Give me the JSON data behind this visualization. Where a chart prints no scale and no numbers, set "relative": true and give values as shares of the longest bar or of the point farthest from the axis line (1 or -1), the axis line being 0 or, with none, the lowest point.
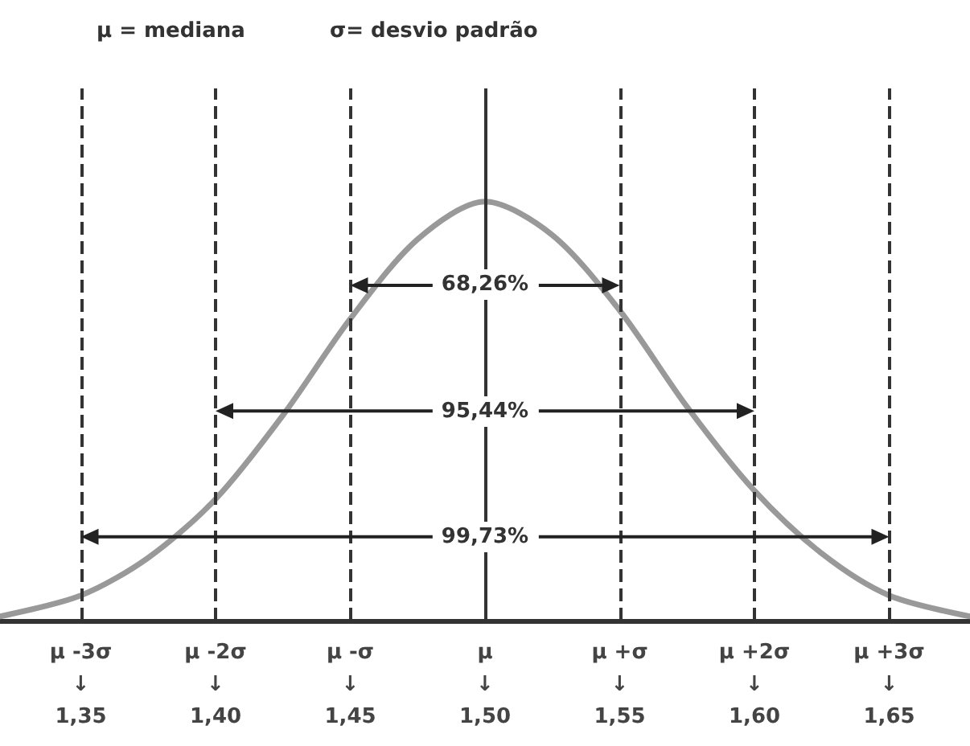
{
  "chart_data": {
    "type": "line",
    "relative": true,
    "title": "μ = mediana",
    "subtitle": "σ= desvio padrão",
    "x": [
      1.32,
      1.35,
      1.375,
      1.4,
      1.425,
      1.45,
      1.475,
      1.5,
      1.525,
      1.55,
      1.575,
      1.6,
      1.625,
      1.65,
      1.68
    ],
    "series": [
      {
        "color": "#999999",
        "values": [
          0.01,
          0.06,
          0.15,
          0.29,
          0.49,
          0.72,
          0.91,
          1.0,
          0.92,
          0.74,
          0.51,
          0.31,
          0.16,
          0.06,
          0.01
        ]
      }
    ],
    "xlim": [
      1.32,
      1.68
    ],
    "xticks": [
      {
        "value": 1.35,
        "label": "μ -3σ\n↓\n1,35"
      },
      {
        "value": 1.4,
        "label": "μ -2σ\n↓\n1,40"
      },
      {
        "value": 1.45,
        "label": "μ -σ\n↓\n1,45"
      },
      {
        "value": 1.5,
        "label": "μ\n↓\n1,50"
      },
      {
        "value": 1.55,
        "label": "μ +σ\n↓\n1,55"
      },
      {
        "value": 1.6,
        "label": "μ +2σ\n↓\n1,60"
      },
      {
        "value": 1.65,
        "label": "μ +3σ\n↓\n1,65"
      }
    ],
    "ref_lines": [
      {
        "axis": "x",
        "value": 1.35,
        "color": "#333333",
        "line_style": "dashed"
      },
      {
        "axis": "x",
        "value": 1.4,
        "color": "#333333",
        "line_style": "dashed"
      },
      {
        "axis": "x",
        "value": 1.45,
        "color": "#333333",
        "line_style": "dashed"
      },
      {
        "axis": "x",
        "value": 1.5,
        "color": "#333333",
        "line_style": "solid"
      },
      {
        "axis": "x",
        "value": 1.55,
        "color": "#333333",
        "line_style": "dashed"
      },
      {
        "axis": "x",
        "value": 1.6,
        "color": "#333333",
        "line_style": "dashed"
      },
      {
        "axis": "x",
        "value": 1.65,
        "color": "#333333",
        "line_style": "dashed"
      }
    ],
    "annotations": [
      "68,26%",
      "95,44%",
      "99,73%"
    ],
    "marker": "none",
    "line_style": "solid",
    "grid": false
  }
}
